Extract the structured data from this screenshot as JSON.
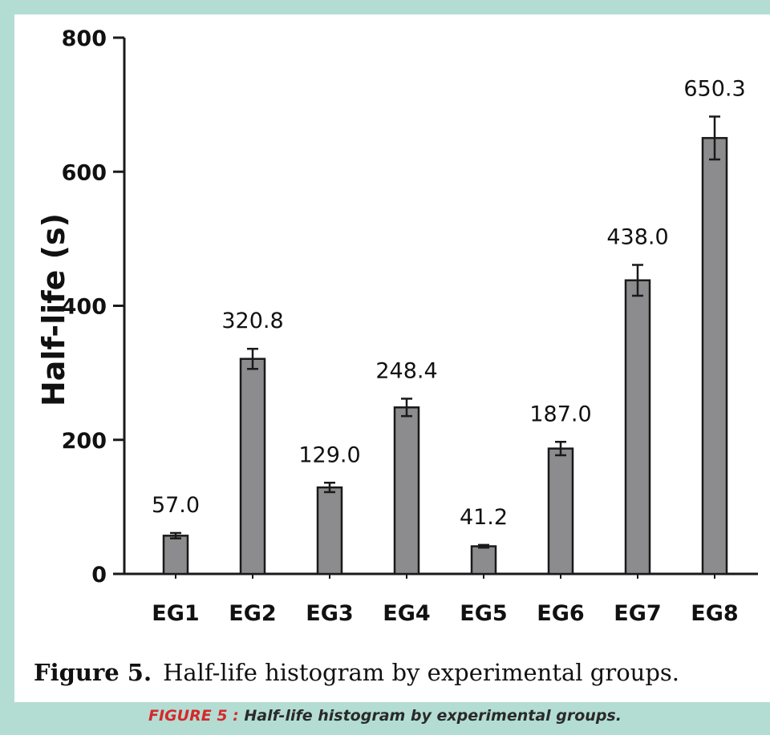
{
  "chart_data": {
    "type": "bar",
    "categories": [
      "EG1",
      "EG2",
      "EG3",
      "EG4",
      "EG5",
      "EG6",
      "EG7",
      "EG8"
    ],
    "values": [
      57.0,
      320.8,
      129.0,
      248.4,
      41.2,
      187.0,
      438.0,
      650.3
    ],
    "value_labels": [
      "57.0",
      "320.8",
      "129.0",
      "248.4",
      "41.2",
      "187.0",
      "438.0",
      "650.3"
    ],
    "error": [
      4,
      15,
      7,
      13,
      2,
      10,
      23,
      32
    ],
    "ylabel": "Half-life (s)",
    "xlabel": "",
    "ylim": [
      0,
      800
    ],
    "yticks": [
      0,
      200,
      400,
      600,
      800
    ],
    "bar_color": "#8c8c8e",
    "edge_color": "#1a1a1a",
    "grid": false,
    "legend": "none"
  },
  "caption": {
    "figure_label": "Figure 5.",
    "text": "Half-life histogram by experimental groups."
  },
  "footer": {
    "label": "FIGURE 5 :",
    "text": "Half-life histogram by experimental groups.",
    "label_color": "#d6282c"
  },
  "colors": {
    "frame": "#b3ddd3",
    "panel": "#ffffff"
  }
}
